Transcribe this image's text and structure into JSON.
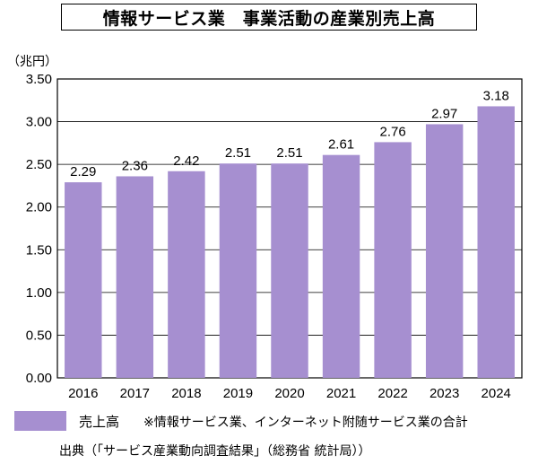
{
  "title": "情報サービス業　事業活動の産業別売上高",
  "chart_data": {
    "type": "bar",
    "unit_label": "（兆円）",
    "categories": [
      "2016",
      "2017",
      "2018",
      "2019",
      "2020",
      "2021",
      "2022",
      "2023",
      "2024"
    ],
    "series": [
      {
        "name": "売上高",
        "values": [
          2.29,
          2.36,
          2.42,
          2.51,
          2.51,
          2.61,
          2.76,
          2.97,
          3.18
        ]
      }
    ],
    "data_labels": [
      "2.29",
      "2.36",
      "2.42",
      "2.51",
      "2.51",
      "2.61",
      "2.76",
      "2.97",
      "3.18"
    ],
    "ylim": [
      0,
      3.5
    ],
    "yticks": [
      "0.00",
      "0.50",
      "1.00",
      "1.50",
      "2.00",
      "2.50",
      "3.00",
      "3.50"
    ],
    "grid": true,
    "bar_color": "#a68fd0",
    "legend_position": "bottom"
  },
  "legend": {
    "label": "売上高",
    "note": "※情報サービス業、インターネット附随サービス業の合計"
  },
  "source": "出典（「サービス産業動向調査結果」（総務省 統計局））"
}
